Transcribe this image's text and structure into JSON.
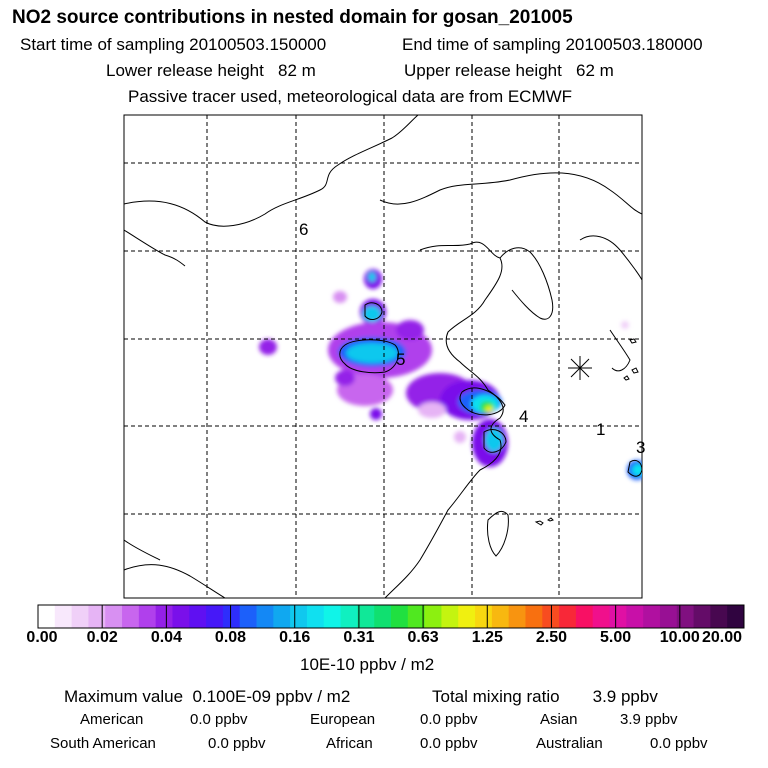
{
  "header": {
    "title": "NO2 source contributions in nested domain for gosan_201005",
    "start_label": "Start time of sampling 20100503.150000",
    "end_label": "End time of sampling 20100503.180000",
    "lower_label": "Lower release height   82 m",
    "upper_label": "Upper release height   62 m",
    "info": "Passive tracer used, meteorological data are from ECMWF"
  },
  "chart_data": {
    "type": "heatmap",
    "title": "NO2 source contributions in nested domain for gosan_201005",
    "region_labels": [
      "6",
      "5",
      "4",
      "1",
      "3"
    ],
    "receptor_marker": "asterisk",
    "colorbar": {
      "ticks": [
        "0.00",
        "0.02",
        "0.04",
        "0.08",
        "0.16",
        "0.31",
        "0.63",
        "1.25",
        "2.50",
        "5.00",
        "10.00",
        "20.00"
      ],
      "unit": "10E-10 ppbv / m2",
      "colors": [
        "#ffffff",
        "#f8e8fc",
        "#f0d0f8",
        "#e6b4f5",
        "#d890f2",
        "#c866ee",
        "#b040ec",
        "#9420e8",
        "#7a10ea",
        "#5f10f2",
        "#4618f8",
        "#2e2efc",
        "#1c60fa",
        "#1488f5",
        "#10a8f0",
        "#10c8ee",
        "#10e0f0",
        "#10f4e8",
        "#10f0c0",
        "#10e898",
        "#10e070",
        "#20e040",
        "#50e820",
        "#8cf010",
        "#c4f410",
        "#f0f010",
        "#f8d810",
        "#f8b810",
        "#f89410",
        "#f87010",
        "#f84c20",
        "#f82838",
        "#f81064",
        "#f0108c",
        "#e010a4",
        "#c810a8",
        "#b010a0",
        "#981094",
        "#801080",
        "#640c68",
        "#480850",
        "#300440"
      ]
    }
  },
  "footer": {
    "max_label": "Maximum value  0.100E-09 ppbv / m2",
    "total_label": "Total mixing ratio       3.9 ppbv",
    "sources": [
      {
        "name": "American",
        "value": "0.0 ppbv"
      },
      {
        "name": "European",
        "value": "0.0 ppbv"
      },
      {
        "name": "Asian",
        "value": "3.9 ppbv"
      },
      {
        "name": "South American",
        "value": "0.0 ppbv"
      },
      {
        "name": "African",
        "value": "0.0 ppbv"
      },
      {
        "name": "Australian",
        "value": "0.0 ppbv"
      }
    ]
  }
}
